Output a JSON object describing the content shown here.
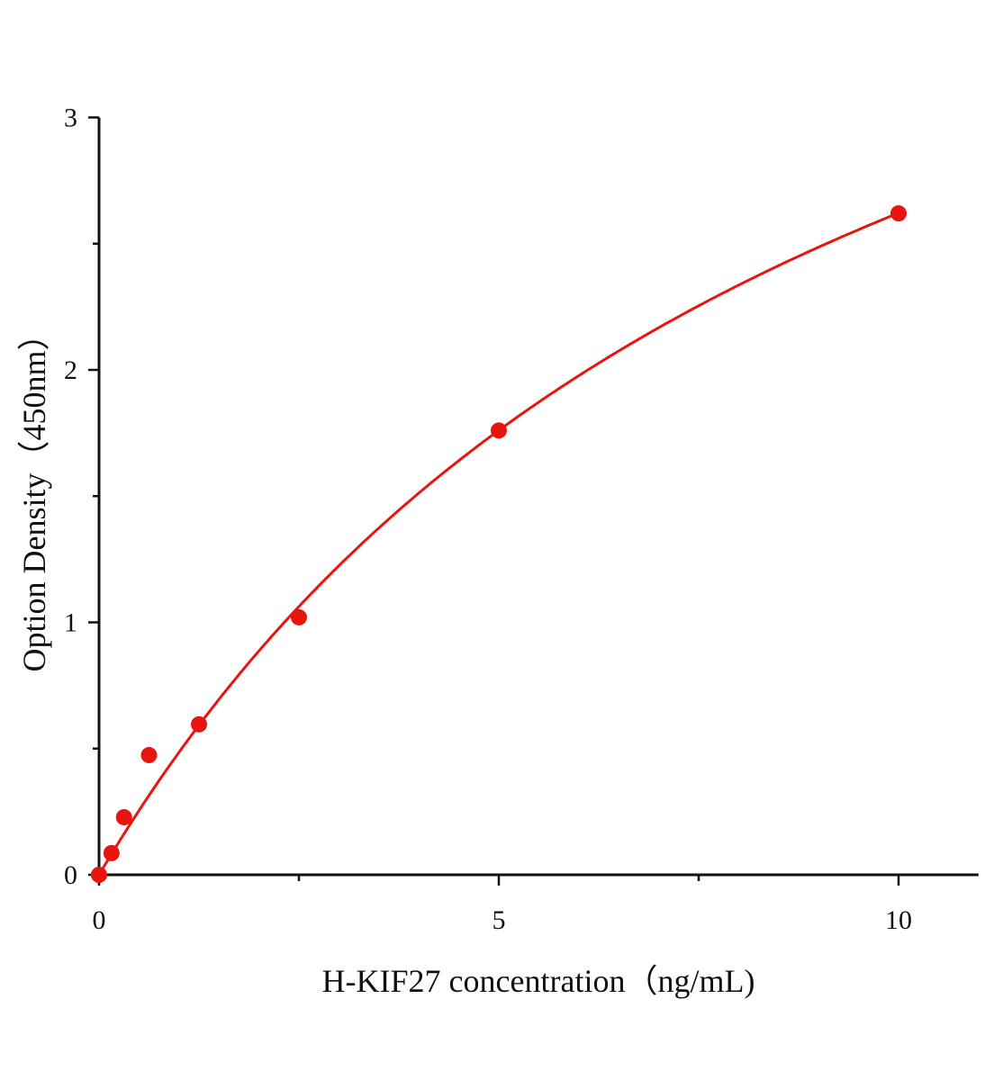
{
  "chart_data": {
    "type": "scatter",
    "xlabel": "H-KIF27 concentration（ng/mL)",
    "ylabel": "Option Density（450nm）",
    "xlim": [
      0,
      11
    ],
    "ylim": [
      0,
      3
    ],
    "x_ticks": [
      0,
      5,
      10
    ],
    "y_ticks": [
      0,
      1,
      2,
      3
    ],
    "x_tick_labels": [
      "0",
      "5",
      "10"
    ],
    "y_tick_labels": [
      "0",
      "1",
      "2",
      "3"
    ],
    "grid": false,
    "color": "#e8150f",
    "series": [
      {
        "x": [
          0,
          0.156,
          0.3125,
          0.625,
          1.25,
          2.5,
          5,
          10
        ],
        "y": [
          0,
          0.086,
          0.228,
          0.474,
          0.596,
          1.02,
          1.76,
          2.62
        ]
      }
    ],
    "fit_line": true
  }
}
